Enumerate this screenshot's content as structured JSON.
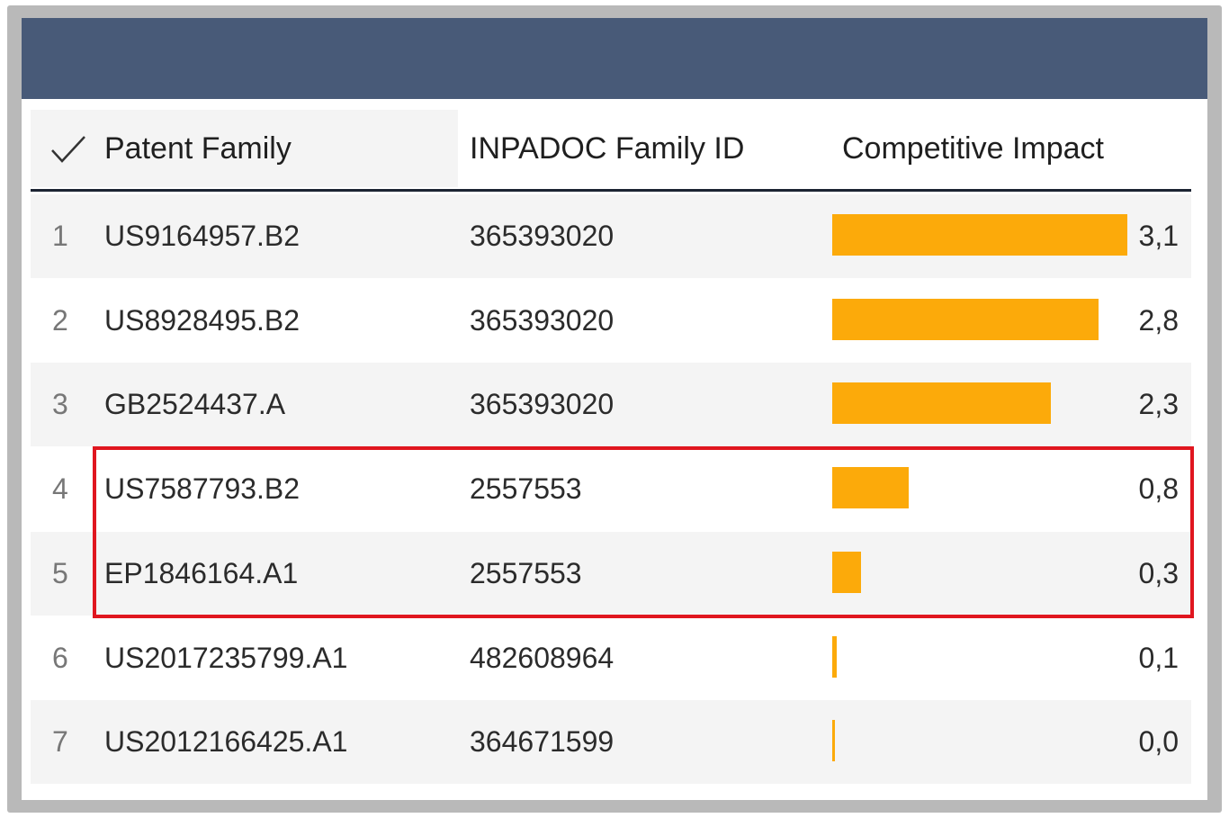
{
  "table": {
    "columns": {
      "patent_family": "Patent Family",
      "inpadoc_id": "INPADOC Family ID",
      "competitive_impact": "Competitive Impact"
    },
    "impact_max": 3.1,
    "rows": [
      {
        "index": "1",
        "family": "US9164957.B2",
        "inpadoc": "365393020",
        "impact": 3.1,
        "impact_label": "3,1"
      },
      {
        "index": "2",
        "family": "US8928495.B2",
        "inpadoc": "365393020",
        "impact": 2.8,
        "impact_label": "2,8"
      },
      {
        "index": "3",
        "family": "GB2524437.A",
        "inpadoc": "365393020",
        "impact": 2.3,
        "impact_label": "2,3"
      },
      {
        "index": "4",
        "family": "US7587793.B2",
        "inpadoc": "2557553",
        "impact": 0.8,
        "impact_label": "0,8"
      },
      {
        "index": "5",
        "family": "EP1846164.A1",
        "inpadoc": "2557553",
        "impact": 0.3,
        "impact_label": "0,3"
      },
      {
        "index": "6",
        "family": "US2017235799.A1",
        "inpadoc": "482608964",
        "impact": 0.05,
        "impact_label": "0,1"
      },
      {
        "index": "7",
        "family": "US2012166425.A1",
        "inpadoc": "364671599",
        "impact": 0.02,
        "impact_label": "0,0"
      }
    ]
  },
  "colors": {
    "header_bar": "#485a78",
    "impact_bar": "#fcaa0a",
    "highlight_border": "#e0161f"
  }
}
